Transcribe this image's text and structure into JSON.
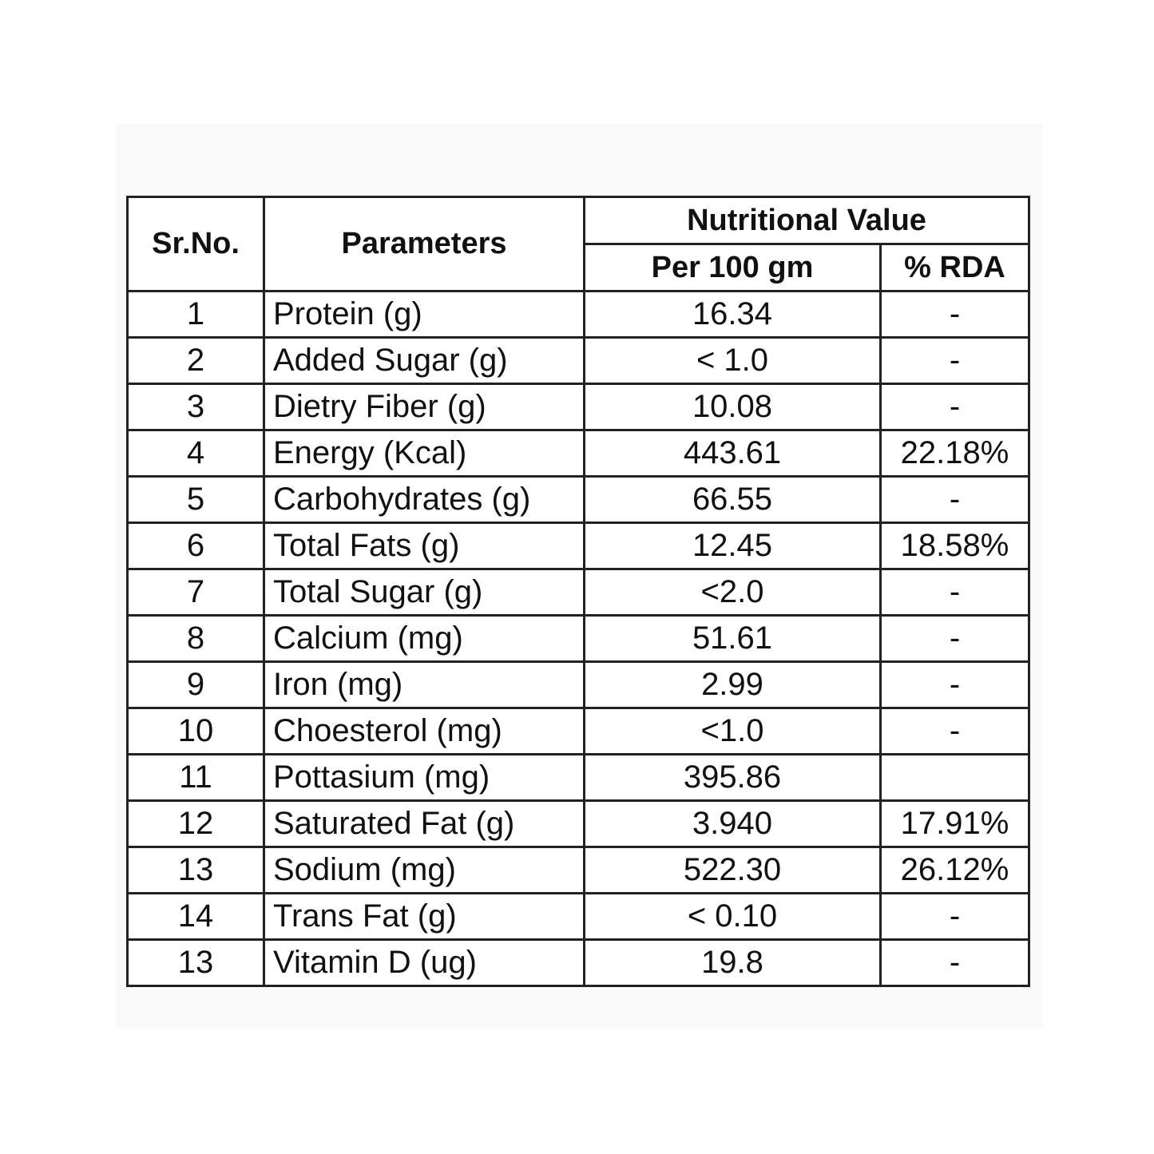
{
  "table": {
    "headers": {
      "sr_no": "Sr.No.",
      "parameters": "Parameters",
      "nutritional_value": "Nutritional Value",
      "per_100_gm": "Per 100 gm",
      "rda": "% RDA"
    },
    "rows": [
      [
        "1",
        "Protein (g)",
        "16.34",
        "-"
      ],
      [
        "2",
        "Added Sugar (g)",
        "< 1.0",
        "-"
      ],
      [
        "3",
        "Dietry Fiber (g)",
        "10.08",
        "-"
      ],
      [
        "4",
        "Energy (Kcal)",
        "443.61",
        "22.18%"
      ],
      [
        "5",
        "Carbohydrates (g)",
        "66.55",
        "-"
      ],
      [
        "6",
        "Total Fats (g)",
        "12.45",
        "18.58%"
      ],
      [
        "7",
        "Total Sugar (g)",
        "<2.0",
        "-"
      ],
      [
        "8",
        "Calcium (mg)",
        "51.61",
        "-"
      ],
      [
        "9",
        "Iron (mg)",
        "2.99",
        "-"
      ],
      [
        "10",
        "Choesterol (mg)",
        "<1.0",
        "-"
      ],
      [
        "11",
        "Pottasium (mg)",
        "395.86",
        null
      ],
      [
        "12",
        "Saturated Fat (g)",
        "3.940",
        "17.91%"
      ],
      [
        "13",
        "Sodium (mg)",
        "522.30",
        "26.12%"
      ],
      [
        "14",
        "Trans Fat (g)",
        "< 0.10",
        "-"
      ],
      [
        "13",
        "Vitamin D (ug)",
        "19.8",
        "-"
      ]
    ]
  }
}
